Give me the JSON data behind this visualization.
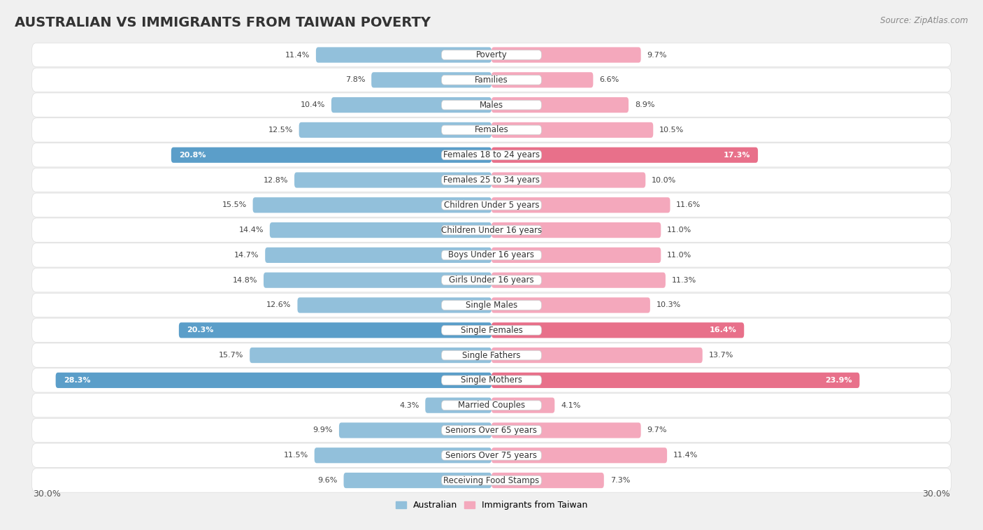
{
  "title": "AUSTRALIAN VS IMMIGRANTS FROM TAIWAN POVERTY",
  "source": "Source: ZipAtlas.com",
  "categories": [
    "Poverty",
    "Families",
    "Males",
    "Females",
    "Females 18 to 24 years",
    "Females 25 to 34 years",
    "Children Under 5 years",
    "Children Under 16 years",
    "Boys Under 16 years",
    "Girls Under 16 years",
    "Single Males",
    "Single Females",
    "Single Fathers",
    "Single Mothers",
    "Married Couples",
    "Seniors Over 65 years",
    "Seniors Over 75 years",
    "Receiving Food Stamps"
  ],
  "australian": [
    11.4,
    7.8,
    10.4,
    12.5,
    20.8,
    12.8,
    15.5,
    14.4,
    14.7,
    14.8,
    12.6,
    20.3,
    15.7,
    28.3,
    4.3,
    9.9,
    11.5,
    9.6
  ],
  "taiwan": [
    9.7,
    6.6,
    8.9,
    10.5,
    17.3,
    10.0,
    11.6,
    11.0,
    11.0,
    11.3,
    10.3,
    16.4,
    13.7,
    23.9,
    4.1,
    9.7,
    11.4,
    7.3
  ],
  "australian_color": "#92c0db",
  "taiwan_color": "#f4a8bc",
  "australian_highlight_color": "#5b9ec9",
  "taiwan_highlight_color": "#e8708a",
  "background_color": "#f0f0f0",
  "row_bg_color": "#ffffff",
  "row_alt_bg_color": "#f8f8f8",
  "max_val": 30.0,
  "highlight_rows": [
    4,
    11,
    13
  ],
  "title_fontsize": 14,
  "label_fontsize": 8.5,
  "value_fontsize": 8.0,
  "legend_fontsize": 9
}
